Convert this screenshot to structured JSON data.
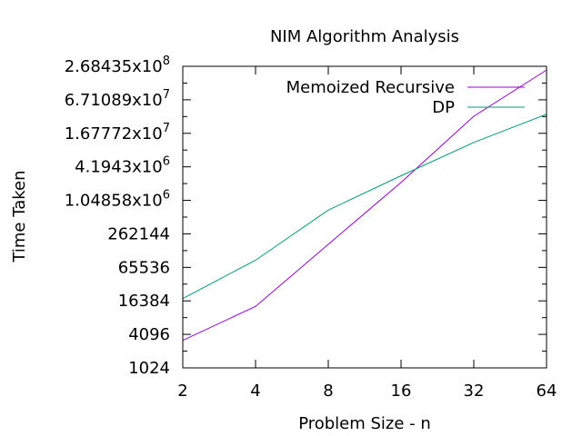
{
  "chart_data": {
    "type": "line",
    "title": "NIM Algorithm Analysis",
    "xlabel": "Problem Size - n",
    "ylabel": "Time Taken",
    "x_scale": "log2",
    "y_scale": "log4",
    "xlim": [
      2,
      64
    ],
    "ylim": [
      1024,
      268435456
    ],
    "x_ticks": [
      {
        "value": 2,
        "label": "2"
      },
      {
        "value": 4,
        "label": "4"
      },
      {
        "value": 8,
        "label": "8"
      },
      {
        "value": 16,
        "label": "16"
      },
      {
        "value": 32,
        "label": "32"
      },
      {
        "value": 64,
        "label": "64"
      }
    ],
    "y_ticks": [
      {
        "value": 1024,
        "mantissa": "1024",
        "exp": ""
      },
      {
        "value": 4096,
        "mantissa": "4096",
        "exp": ""
      },
      {
        "value": 16384,
        "mantissa": "16384",
        "exp": ""
      },
      {
        "value": 65536,
        "mantissa": "65536",
        "exp": ""
      },
      {
        "value": 262144,
        "mantissa": "262144",
        "exp": ""
      },
      {
        "value": 1048576,
        "mantissa": "1.04858x10",
        "exp": "6"
      },
      {
        "value": 4194304,
        "mantissa": "4.1943x10",
        "exp": "6"
      },
      {
        "value": 16777216,
        "mantissa": "1.67772x10",
        "exp": "7"
      },
      {
        "value": 67108864,
        "mantissa": "6.71089x10",
        "exp": "7"
      },
      {
        "value": 268435456,
        "mantissa": "2.68435x10",
        "exp": "8"
      }
    ],
    "legend_position": "top-right",
    "grid": false,
    "series": [
      {
        "name": "Memoized Recursive",
        "color": "#9400d3",
        "x": [
          2,
          4,
          8,
          16,
          32,
          64
        ],
        "y": [
          3200,
          13000,
          170000,
          2200000,
          34000000,
          230000000
        ]
      },
      {
        "name": "DP",
        "color": "#009e73",
        "x": [
          2,
          4,
          8,
          16,
          32,
          64
        ],
        "y": [
          18000,
          88000,
          700000,
          2900000,
          11500000,
          37000000
        ]
      }
    ]
  }
}
